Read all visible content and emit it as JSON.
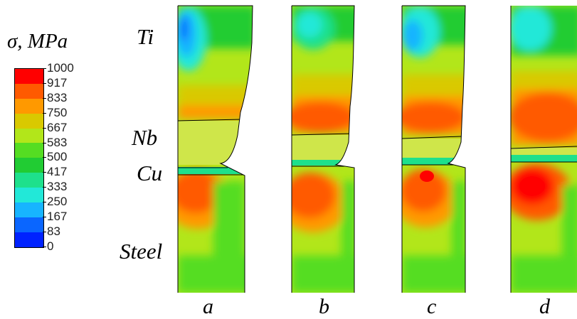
{
  "figure": {
    "unit_label": "σ, MPa",
    "legend": {
      "ticks": [
        "1000",
        "917",
        "833",
        "750",
        "667",
        "583",
        "500",
        "417",
        "333",
        "250",
        "167",
        "83",
        "0"
      ],
      "colors": [
        "#ff0000",
        "#ff5a00",
        "#ff9900",
        "#d9c900",
        "#b2e61a",
        "#55dd22",
        "#21cc33",
        "#1ee08c",
        "#22e8d8",
        "#17b4ff",
        "#0a66ff",
        "#0022ff"
      ]
    },
    "materials": {
      "ti": "Ti",
      "nb": "Nb",
      "cu": "Cu",
      "steel": "Steel"
    },
    "panels": [
      {
        "label": "a"
      },
      {
        "label": "b"
      },
      {
        "label": "c"
      },
      {
        "label": "d"
      }
    ]
  }
}
